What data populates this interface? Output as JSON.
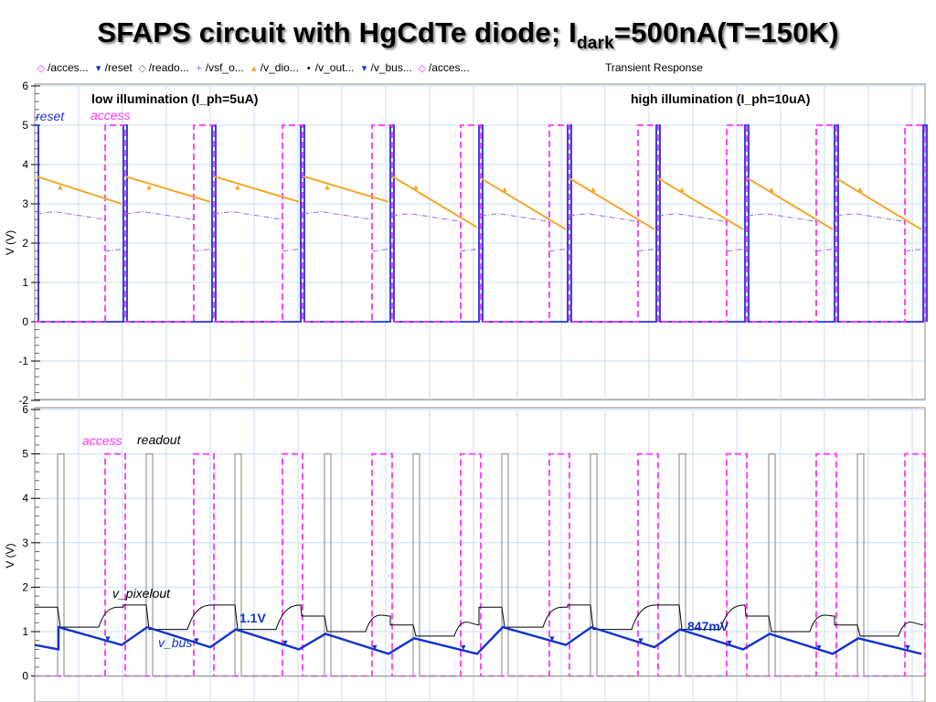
{
  "title": {
    "main": "SFAPS circuit with HgCdTe diode; I",
    "sub": "dark",
    "rest": "=500nA(T=150K)"
  },
  "plot_title": "Transient Response",
  "legend": [
    {
      "label": "/acces...",
      "color": "#ff33ff",
      "marker": "◇"
    },
    {
      "label": "/reset",
      "color": "#2222cc",
      "marker": "▾"
    },
    {
      "label": "/reado...",
      "color": "#777777",
      "marker": "◇"
    },
    {
      "label": "/vsf_o...",
      "color": "#9966ee",
      "marker": "+"
    },
    {
      "label": "/v_dio...",
      "color": "#f5a623",
      "marker": "▴"
    },
    {
      "label": "/v_out...",
      "color": "#000000",
      "marker": "•"
    },
    {
      "label": "/v_bus...",
      "color": "#1133cc",
      "marker": "▾"
    },
    {
      "label": "/acces...",
      "color": "#ff33ff",
      "marker": "◇"
    }
  ],
  "colors": {
    "access": "#ff33ff",
    "reset": "#2233dd",
    "readout": "#999999",
    "vsf_out": "#9966ee",
    "v_diode": "#f5a623",
    "v_pixelout": "#000000",
    "v_bus": "#1133cc",
    "grid": "#c8ddf0"
  },
  "chart_data": [
    {
      "type": "line",
      "ylabel": "V (V)",
      "ylim": [
        -2,
        6
      ],
      "yticks": [
        "6",
        "5",
        "4",
        "3",
        "2",
        "1",
        "0",
        "-1",
        "-2"
      ],
      "grid": true,
      "annotations": {
        "left": "low illumination (I_ph=5uA)",
        "right": "high illumination (I_ph=10uA)",
        "reset_label": "reset",
        "access_label": "access"
      },
      "series": [
        {
          "name": "reset",
          "high": 5,
          "low": 0
        },
        {
          "name": "access",
          "high": 5,
          "low": 0
        },
        {
          "name": "v_dio",
          "start_values": [
            3.7,
            3.7,
            3.7,
            3.7,
            3.7,
            3.65,
            3.65,
            3.65,
            3.65,
            3.65
          ],
          "end_values": [
            3.0,
            3.05,
            3.05,
            3.05,
            2.4,
            2.35,
            2.35,
            2.35,
            2.35,
            2.35
          ]
        },
        {
          "name": "vsf_out",
          "level": 2.75
        }
      ]
    },
    {
      "type": "line",
      "ylabel": "V (V)",
      "ylim": [
        -0.5,
        6
      ],
      "yticks": [
        "6",
        "5",
        "4",
        "3",
        "2",
        "1",
        "0"
      ],
      "grid": true,
      "annotations": {
        "access_label": "access",
        "readout_label": "readout",
        "pixelout_label": "v_pixelout",
        "bus_label": "v_bus",
        "value_low": "1.1V",
        "value_high": "847mV"
      },
      "series": [
        {
          "name": "access",
          "high": 5,
          "low": 0
        },
        {
          "name": "readout",
          "high": 5,
          "low": 0
        },
        {
          "name": "v_pixelout",
          "values": [
            1.55,
            1.1,
            1.6,
            1.05,
            1.6,
            1.05,
            1.35,
            1.0,
            1.15,
            0.9
          ]
        },
        {
          "name": "v_bus",
          "values": [
            1.1,
            0.7,
            1.1,
            0.65,
            1.05,
            0.6,
            0.95,
            0.5,
            0.85,
            0.5
          ]
        }
      ]
    }
  ]
}
